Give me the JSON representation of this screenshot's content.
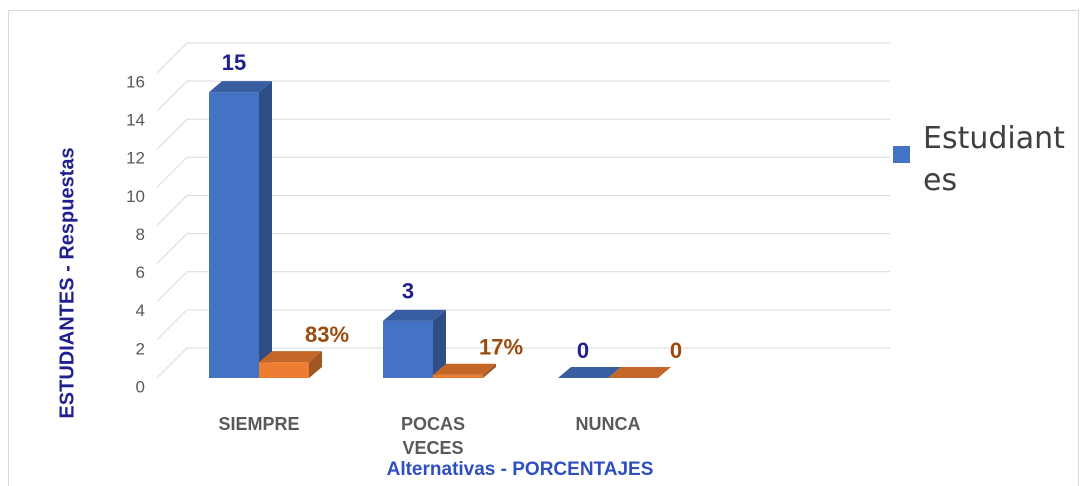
{
  "chart_data": {
    "type": "bar3d",
    "ylabel": "ESTUDIANTES - Respuestas",
    "xlabel": "Alternativas - PORCENTAJES",
    "categories": [
      "SIEMPRE",
      "POCAS VECES",
      "NUNCA"
    ],
    "series": [
      {
        "name": "Estudiantes",
        "color": "#4472c4",
        "values": [
          15,
          3,
          0
        ],
        "value_labels": [
          "15",
          "3",
          "0"
        ],
        "label_color": "#1f1f8f"
      },
      {
        "color": "#ed7d31",
        "values": [
          0.83,
          0.17,
          0
        ],
        "value_labels": [
          "83%",
          "17%",
          "0"
        ],
        "label_color": "#9c4a0c"
      }
    ],
    "ylim": [
      0,
      16
    ],
    "yticks": [
      0,
      2,
      4,
      6,
      8,
      10,
      12,
      14,
      16
    ],
    "grid": true,
    "legend": "right"
  }
}
